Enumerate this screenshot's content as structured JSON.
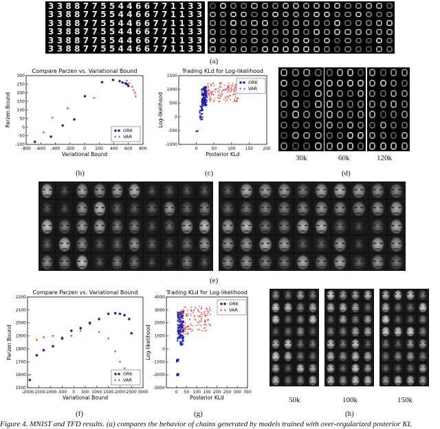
{
  "labels": {
    "a": "(a)",
    "b": "(b)",
    "c": "(c)",
    "d": "(d)",
    "e": "(e)",
    "f": "(f)",
    "g": "(g)",
    "h": "(h)"
  },
  "mnist_row_digits": [
    "3",
    "3",
    "8",
    "8",
    "7",
    "7",
    "5",
    "5",
    "4",
    "4",
    "6",
    "6",
    "7",
    "7",
    "1",
    "1",
    "3",
    "3"
  ],
  "d_ticks": [
    "30k",
    "60k",
    "120k"
  ],
  "h_ticks": [
    "50k",
    "100k",
    "150k"
  ],
  "caption": "Figure 4. MNIST and TFD results. (a) compares the behavior of chains generated by models trained with over-regularized posterior KL",
  "chart_data": [
    {
      "id": "b",
      "type": "scatter",
      "title": "Compare Parzen vs. Variational Bound",
      "xlabel": "Variational Bound",
      "ylabel": "Parzen Bound",
      "xlim": [
        -800,
        800
      ],
      "ylim": [
        -100,
        300
      ],
      "xticks": [
        "-800",
        "-600",
        "-400",
        "-200",
        "0",
        "200",
        "400",
        "600",
        "800"
      ],
      "yticks": [
        "-100",
        "-50",
        "0",
        "50",
        "100",
        "150",
        "200",
        "250",
        "300"
      ],
      "legend_position": "bottom-right",
      "series": [
        {
          "name": "ORK",
          "marker": "dot",
          "color": "#1f1fa8",
          "x": [
            -680,
            -460,
            -300,
            -140,
            5,
            240,
            390,
            480,
            520,
            560,
            580,
            600
          ],
          "y": [
            -85,
            -55,
            10,
            45,
            180,
            262,
            275,
            268,
            260,
            255,
            250,
            240
          ]
        },
        {
          "name": "VAR",
          "marker": "plus",
          "color": "#d21f1f",
          "x": [
            -560,
            -440,
            -230,
            130,
            580,
            610,
            650,
            670,
            690,
            700
          ],
          "y": [
            -30,
            55,
            110,
            170,
            270,
            255,
            235,
            215,
            200,
            180
          ]
        }
      ]
    },
    {
      "id": "c",
      "type": "scatter",
      "title": "Trading KLd for Log-likelihood",
      "xlabel": "Posterior KLd",
      "ylabel": "Log-likelihood",
      "xlim": [
        -50,
        200
      ],
      "ylim": [
        -1000,
        1500
      ],
      "xticks": [
        "0",
        "50",
        "100",
        "150",
        "200"
      ],
      "yticks": [
        "-1000",
        "-500",
        "0",
        "500",
        "1000",
        "1500"
      ],
      "legend_position": "top-right",
      "series": [
        {
          "name": "ORK",
          "marker": "dot",
          "color": "#1f1fa8"
        },
        {
          "name": "VAR",
          "marker": "plus",
          "color": "#d21f1f"
        }
      ]
    },
    {
      "id": "f",
      "type": "scatter",
      "title": "Compare Parzen vs. Variational Bound",
      "xlabel": "Variational Bound",
      "ylabel": "Parzen Bound",
      "xlim": [
        -2000,
        3000
      ],
      "ylim": [
        1500,
        2200
      ],
      "xticks": [
        "-2000",
        "-1500",
        "-1000",
        "-500",
        "0",
        "500",
        "1000",
        "1500",
        "2000",
        "2500",
        "3000"
      ],
      "yticks": [
        "1500",
        "1600",
        "1700",
        "1800",
        "1900",
        "2000",
        "2100",
        "2200"
      ],
      "legend_position": "bottom-right",
      "series": [
        {
          "name": "ORK",
          "marker": "dot",
          "color": "#1f1fa8",
          "x": [
            -1900,
            -1600,
            -1300,
            -900,
            -500,
            -100,
            300,
            700,
            1100,
            1500,
            1800,
            2000,
            2200,
            2400,
            2500
          ],
          "y": [
            1560,
            1750,
            1790,
            1820,
            1880,
            1940,
            1960,
            2000,
            2030,
            2070,
            2075,
            2070,
            2060,
            2030,
            1920
          ]
        },
        {
          "name": "VAR",
          "marker": "plus",
          "color": "#d21f1f",
          "x": [
            -1900,
            -1600,
            -1300,
            -900,
            -500,
            -100,
            300,
            700,
            1100,
            1500,
            1800,
            2000,
            2200,
            2400
          ],
          "y": [
            1600,
            1870,
            1890,
            1900,
            1890,
            1900,
            1940,
            1990,
            1930,
            1880,
            1780,
            1700,
            1650,
            1600
          ]
        }
      ]
    },
    {
      "id": "g",
      "type": "scatter",
      "title": "Trading KLd for Log-likelihood",
      "xlabel": "Posterior KLd",
      "ylabel": "Log-likelihood",
      "xlim": [
        -50,
        350
      ],
      "ylim": [
        -3000,
        4000
      ],
      "xticks": [
        "0",
        "50",
        "100",
        "150",
        "200",
        "250",
        "300",
        "350"
      ],
      "yticks": [
        "-3000",
        "-2000",
        "-1000",
        "0",
        "1000",
        "2000",
        "3000",
        "4000"
      ],
      "legend_position": "top-right",
      "series": [
        {
          "name": "ORK",
          "marker": "dot",
          "color": "#1f1fa8"
        },
        {
          "name": "VAR",
          "marker": "plus",
          "color": "#d21f1f"
        }
      ]
    }
  ]
}
